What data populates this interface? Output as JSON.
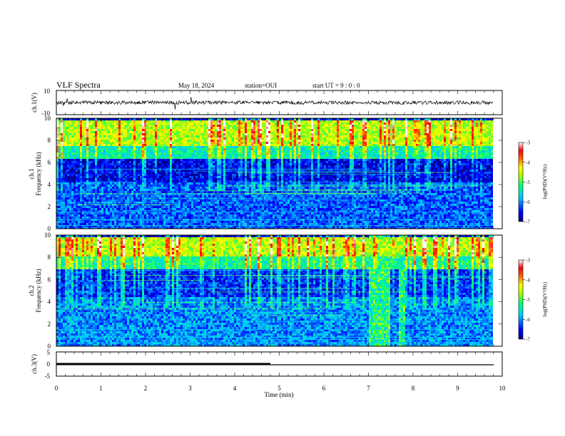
{
  "header": {
    "title": "VLF Spectra",
    "date": "May 18, 2024",
    "station": "station=OUI",
    "start": "start UT =  9 : 0 : 0"
  },
  "xaxis": {
    "label": "Time (min)",
    "range": [
      0,
      10
    ],
    "ticks": [
      "0",
      "1",
      "2",
      "3",
      "4",
      "5",
      "6",
      "7",
      "8",
      "9",
      "10"
    ]
  },
  "panels": {
    "ch1": {
      "label": "ch.1(V)",
      "ticks": [
        "10",
        "-10"
      ],
      "range": [
        -10,
        10
      ]
    },
    "spec1": {
      "label_top": "ch.1",
      "label": "Frequency (kHz)",
      "range": [
        0,
        10
      ],
      "ticks": [
        "0",
        "2",
        "4",
        "6",
        "8",
        "10"
      ]
    },
    "spec2": {
      "label_top": "ch.2",
      "label": "Frequency (kHz)",
      "range": [
        0,
        10
      ],
      "ticks": [
        "0",
        "2",
        "4",
        "6",
        "8",
        "10"
      ]
    },
    "ch3": {
      "label": "ch.3(V)",
      "ticks": [
        "5",
        "0",
        "-5"
      ],
      "range": [
        -5,
        5
      ]
    }
  },
  "colorbar": {
    "label": "log(PSD)(V²/Hz)",
    "range": [
      -7,
      -3
    ],
    "ticks": [
      "-3",
      "-4",
      "-5",
      "-6",
      "-7"
    ],
    "colors": [
      "#000080",
      "#0000ff",
      "#00c8ff",
      "#00ff80",
      "#aaff00",
      "#ffff00",
      "#ff6000",
      "#ff0000",
      "#ffffff"
    ]
  },
  "chart_data": [
    {
      "type": "line",
      "title": "VLF Spectra",
      "ylabel": "ch.1(V)",
      "xlabel": "Time (min)",
      "xlim": [
        0,
        10
      ],
      "ylim": [
        -10,
        10
      ],
      "series": [
        {
          "x": [
            0,
            9.8
          ],
          "y": [
            0,
            0
          ]
        }
      ]
    },
    {
      "type": "heatmap",
      "ylabel": "Frequency (kHz)",
      "xlabel": "Time (min)",
      "xlim": [
        0,
        9.8
      ],
      "ylim": [
        0,
        10
      ],
      "zlim": [
        -7,
        -3
      ],
      "bands_khz": [
        [
          0,
          4.2,
          -6.2
        ],
        [
          4.2,
          6.5,
          -6.6
        ],
        [
          6.5,
          7.5,
          -5.4
        ],
        [
          7.5,
          10,
          -4.6
        ]
      ]
    },
    {
      "type": "heatmap",
      "ylabel": "Frequency (kHz)",
      "xlabel": "Time (min)",
      "xlim": [
        0,
        9.8
      ],
      "ylim": [
        0,
        10
      ],
      "zlim": [
        -7,
        -3
      ],
      "bands_khz": [
        [
          0,
          4.5,
          -6.0
        ],
        [
          4.5,
          7.0,
          -6.4
        ],
        [
          7.0,
          8.2,
          -5.3
        ],
        [
          8.2,
          10,
          -4.6
        ]
      ],
      "events": [
        {
          "t_min": [
            7.0,
            7.45
          ],
          "f_khz": [
            0,
            10
          ],
          "z": -5.2
        },
        {
          "t_min": [
            7.65,
            7.8
          ],
          "f_khz": [
            0,
            10
          ],
          "z": -5.2
        }
      ]
    },
    {
      "type": "line",
      "ylabel": "ch.3(V)",
      "xlabel": "Time (min)",
      "xlim": [
        0,
        10
      ],
      "ylim": [
        -5,
        5
      ],
      "series": [
        {
          "x": [
            0,
            4.8
          ],
          "y": [
            0,
            0
          ]
        },
        {
          "x": [
            4.8,
            9.8
          ],
          "y": [
            0,
            0
          ]
        }
      ]
    }
  ]
}
